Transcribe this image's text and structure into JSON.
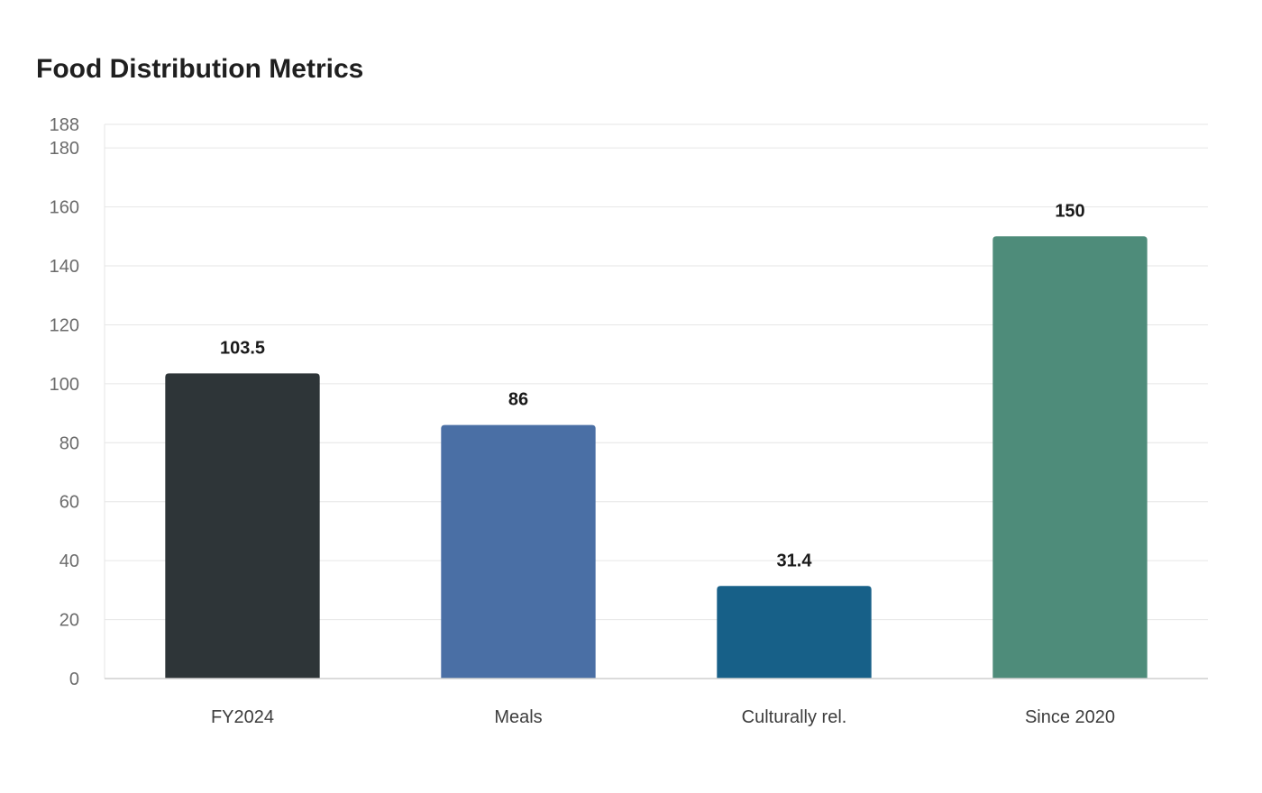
{
  "chart_data": {
    "type": "bar",
    "title": "Food Distribution Metrics",
    "xlabel": "",
    "ylabel": "",
    "categories": [
      "FY2024",
      "Meals",
      "Culturally rel.",
      "Since 2020"
    ],
    "values": [
      103.5,
      86,
      31.4,
      150
    ],
    "value_labels": [
      "103.5",
      "86",
      "31.4",
      "150"
    ],
    "colors": [
      "#2e3538",
      "#4a6fa5",
      "#176088",
      "#4e8c7a"
    ],
    "ylim": [
      0,
      188
    ],
    "yticks": [
      0,
      20,
      40,
      60,
      80,
      100,
      120,
      140,
      160,
      180,
      188
    ],
    "grid": true,
    "legend": "none"
  }
}
